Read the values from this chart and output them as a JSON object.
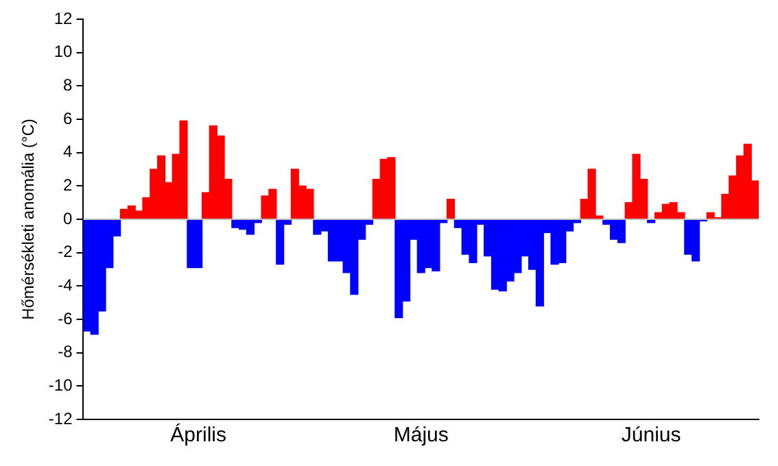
{
  "chart_data": {
    "type": "bar",
    "ylabel": "Hőmérsékleti anomália (°C)",
    "categories": [
      null,
      null,
      null,
      null,
      null,
      null,
      null,
      null,
      null,
      null,
      null,
      null,
      null,
      null,
      null,
      "Április",
      null,
      null,
      null,
      null,
      null,
      null,
      null,
      null,
      null,
      null,
      null,
      null,
      null,
      null,
      null,
      null,
      null,
      null,
      null,
      null,
      null,
      null,
      null,
      null,
      null,
      null,
      null,
      null,
      null,
      "Május",
      null,
      null,
      null,
      null,
      null,
      null,
      null,
      null,
      null,
      null,
      null,
      null,
      null,
      null,
      null,
      null,
      null,
      null,
      null,
      null,
      null,
      null,
      null,
      null,
      null,
      null,
      null,
      null,
      null,
      null,
      "Június",
      null,
      null,
      null,
      null,
      null,
      null,
      null,
      null,
      null,
      null,
      null,
      null,
      null,
      null
    ],
    "values": [
      -6.7,
      -6.9,
      -5.5,
      -2.9,
      -1.0,
      0.6,
      0.8,
      0.5,
      1.3,
      3.0,
      3.8,
      2.2,
      3.9,
      5.9,
      -2.9,
      -2.9,
      1.6,
      5.6,
      5.0,
      2.4,
      -0.5,
      -0.6,
      -0.9,
      -0.2,
      1.4,
      1.8,
      -2.7,
      -0.3,
      3.0,
      2.0,
      1.8,
      -0.9,
      -0.7,
      -2.5,
      -2.5,
      -3.2,
      -4.5,
      -1.2,
      -0.3,
      2.4,
      3.6,
      3.7,
      -5.9,
      -4.9,
      -1.2,
      -3.2,
      -2.9,
      -3.1,
      -0.2,
      1.2,
      -0.5,
      -2.1,
      -2.6,
      -0.3,
      -2.2,
      -4.2,
      -4.3,
      -3.7,
      -3.2,
      -2.2,
      -3.0,
      -5.2,
      -0.8,
      -2.7,
      -2.6,
      -0.7,
      -0.2,
      1.2,
      3.0,
      0.2,
      -0.3,
      -1.2,
      -1.4,
      1.0,
      3.9,
      2.4,
      -0.2,
      0.4,
      0.9,
      1.0,
      0.4,
      -2.1,
      -2.5,
      -0.1,
      0.4,
      0.1,
      1.5,
      2.6,
      3.8,
      4.5,
      2.3
    ],
    "colors": [
      "#0000ff",
      "#0000ff",
      "#0000ff",
      "#0000ff",
      "#0000ff",
      "#ff0000",
      "#ff0000",
      "#ff0000",
      "#ff0000",
      "#ff0000",
      "#ff0000",
      "#ff0000",
      "#ff0000",
      "#ff0000",
      "#0000ff",
      "#0000ff",
      "#ff0000",
      "#ff0000",
      "#ff0000",
      "#ff0000",
      "#0000ff",
      "#0000ff",
      "#0000ff",
      "#0000ff",
      "#ff0000",
      "#ff0000",
      "#0000ff",
      "#0000ff",
      "#ff0000",
      "#ff0000",
      "#ff0000",
      "#0000ff",
      "#0000ff",
      "#0000ff",
      "#0000ff",
      "#0000ff",
      "#0000ff",
      "#0000ff",
      "#0000ff",
      "#ff0000",
      "#ff0000",
      "#ff0000",
      "#0000ff",
      "#0000ff",
      "#0000ff",
      "#0000ff",
      "#0000ff",
      "#0000ff",
      "#0000ff",
      "#ff0000",
      "#0000ff",
      "#0000ff",
      "#0000ff",
      "#0000ff",
      "#0000ff",
      "#0000ff",
      "#0000ff",
      "#0000ff",
      "#0000ff",
      "#0000ff",
      "#0000ff",
      "#0000ff",
      "#0000ff",
      "#0000ff",
      "#0000ff",
      "#0000ff",
      "#0000ff",
      "#ff0000",
      "#ff0000",
      "#ff0000",
      "#0000ff",
      "#0000ff",
      "#0000ff",
      "#ff0000",
      "#ff0000",
      "#ff0000",
      "#0000ff",
      "#ff0000",
      "#ff0000",
      "#ff0000",
      "#ff0000",
      "#0000ff",
      "#0000ff",
      "#0000ff",
      "#ff0000",
      "#ff0000",
      "#ff0000",
      "#ff0000",
      "#ff0000",
      "#ff0000",
      "#ff0000"
    ],
    "ylim": [
      -12,
      12
    ],
    "yticks": [
      -12,
      -10,
      -8,
      -6,
      -4,
      -2,
      0,
      2,
      4,
      6,
      8,
      10,
      12
    ],
    "ref_lines": [
      {
        "axis": "y",
        "value": 0,
        "color": "#bfbfbf"
      }
    ],
    "grid": false,
    "legend": false
  }
}
